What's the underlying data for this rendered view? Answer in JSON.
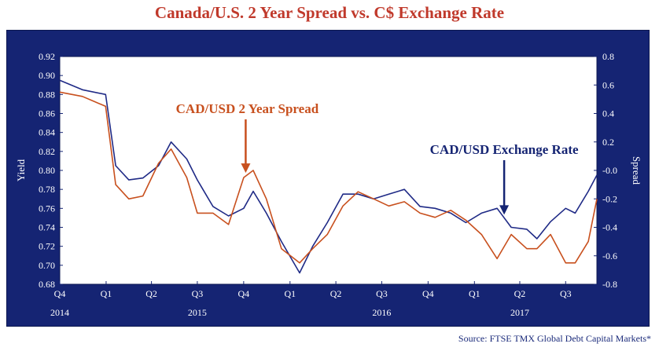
{
  "title": "Canada/U.S. 2 Year Spread vs. C$ Exchange Rate",
  "source": "Source: FTSE TMX Global Debt Capital Markets*",
  "colors": {
    "panel": "#152473",
    "fx_line": "#1f2a86",
    "spread_line": "#c8501e",
    "title": "#c0392b"
  },
  "chart_data": {
    "type": "line",
    "title": "Canada/U.S. 2 Year Spread vs. C$ Exchange Rate",
    "ylabel_left": "Yield",
    "ylabel_right": "Spread",
    "ylim_left": [
      0.68,
      0.92
    ],
    "ylim_right": [
      -0.8,
      0.8
    ],
    "yticks_left": [
      "0.92",
      "0.90",
      "0.88",
      "0.86",
      "0.84",
      "0.82",
      "0.80",
      "0.78",
      "0.76",
      "0.74",
      "0.72",
      "0.70",
      "0.68"
    ],
    "yticks_right": [
      "0.8",
      "0.6",
      "0.4",
      "0.2",
      "-0.0",
      "-0.2",
      "-0.4",
      "-0.6",
      "-0.8"
    ],
    "x_quarter_labels": [
      "Q4",
      "Q1",
      "Q2",
      "Q3",
      "Q4",
      "Q1",
      "Q2",
      "Q3",
      "Q4",
      "Q1",
      "Q2",
      "Q3"
    ],
    "x_year_labels": [
      {
        "label": "2014",
        "at": "Q4 2014"
      },
      {
        "label": "2015",
        "at": "Q3 2015"
      },
      {
        "label": "2016",
        "at": "Q3 2016"
      },
      {
        "label": "2017",
        "at": "Q2 2017"
      }
    ],
    "x_range": [
      "2014-10-01",
      "2017-09-01"
    ],
    "grid": false,
    "series": [
      {
        "name": "CAD/USD Exchange Rate",
        "axis": "left",
        "color": "#1f2a86",
        "x": [
          "2014-10-01",
          "2014-11-15",
          "2014-12-31",
          "2015-01-20",
          "2015-02-15",
          "2015-03-15",
          "2015-04-15",
          "2015-05-10",
          "2015-06-10",
          "2015-07-01",
          "2015-08-01",
          "2015-09-01",
          "2015-10-01",
          "2015-10-20",
          "2015-11-15",
          "2015-12-15",
          "2016-01-20",
          "2016-02-15",
          "2016-03-15",
          "2016-04-15",
          "2016-05-15",
          "2016-06-15",
          "2016-07-15",
          "2016-08-15",
          "2016-09-15",
          "2016-10-15",
          "2016-11-15",
          "2016-12-15",
          "2017-01-15",
          "2017-02-15",
          "2017-03-15",
          "2017-04-15",
          "2017-05-05",
          "2017-06-01",
          "2017-07-01",
          "2017-07-20",
          "2017-08-15",
          "2017-09-01"
        ],
        "values": [
          0.895,
          0.885,
          0.88,
          0.805,
          0.79,
          0.792,
          0.805,
          0.83,
          0.812,
          0.79,
          0.762,
          0.752,
          0.76,
          0.778,
          0.755,
          0.725,
          0.692,
          0.72,
          0.745,
          0.775,
          0.775,
          0.77,
          0.775,
          0.78,
          0.762,
          0.76,
          0.755,
          0.745,
          0.755,
          0.76,
          0.74,
          0.738,
          0.728,
          0.746,
          0.76,
          0.755,
          0.778,
          0.795
        ]
      },
      {
        "name": "CAD/USD 2 Year Spread",
        "axis": "right",
        "color": "#c8501e",
        "x": [
          "2014-10-01",
          "2014-11-15",
          "2014-12-31",
          "2015-01-20",
          "2015-02-15",
          "2015-03-15",
          "2015-04-15",
          "2015-05-10",
          "2015-06-10",
          "2015-07-01",
          "2015-08-01",
          "2015-09-01",
          "2015-10-01",
          "2015-10-20",
          "2015-11-15",
          "2015-12-15",
          "2016-01-20",
          "2016-02-15",
          "2016-03-15",
          "2016-04-15",
          "2016-05-15",
          "2016-06-15",
          "2016-07-15",
          "2016-08-15",
          "2016-09-15",
          "2016-10-15",
          "2016-11-15",
          "2016-12-15",
          "2017-01-15",
          "2017-02-15",
          "2017-03-15",
          "2017-04-15",
          "2017-05-05",
          "2017-06-01",
          "2017-07-01",
          "2017-07-20",
          "2017-08-15",
          "2017-09-01"
        ],
        "values": [
          0.55,
          0.52,
          0.45,
          -0.1,
          -0.2,
          -0.18,
          0.05,
          0.15,
          -0.05,
          -0.3,
          -0.3,
          -0.38,
          -0.05,
          0.0,
          -0.2,
          -0.55,
          -0.65,
          -0.55,
          -0.45,
          -0.25,
          -0.15,
          -0.2,
          -0.25,
          -0.22,
          -0.3,
          -0.33,
          -0.28,
          -0.35,
          -0.45,
          -0.62,
          -0.45,
          -0.55,
          -0.55,
          -0.45,
          -0.65,
          -0.65,
          -0.5,
          -0.2
        ]
      }
    ],
    "annotations": [
      {
        "text": "CAD/USD 2 Year Spread",
        "color": "#c8501e",
        "arrow_to": {
          "x": "2015-10-05",
          "series": "CAD/USD 2 Year Spread"
        }
      },
      {
        "text": "CAD/USD Exchange Rate",
        "color": "#ffffff",
        "arrow_to": {
          "x": "2017-03-01",
          "series": "CAD/USD Exchange Rate"
        }
      }
    ]
  }
}
